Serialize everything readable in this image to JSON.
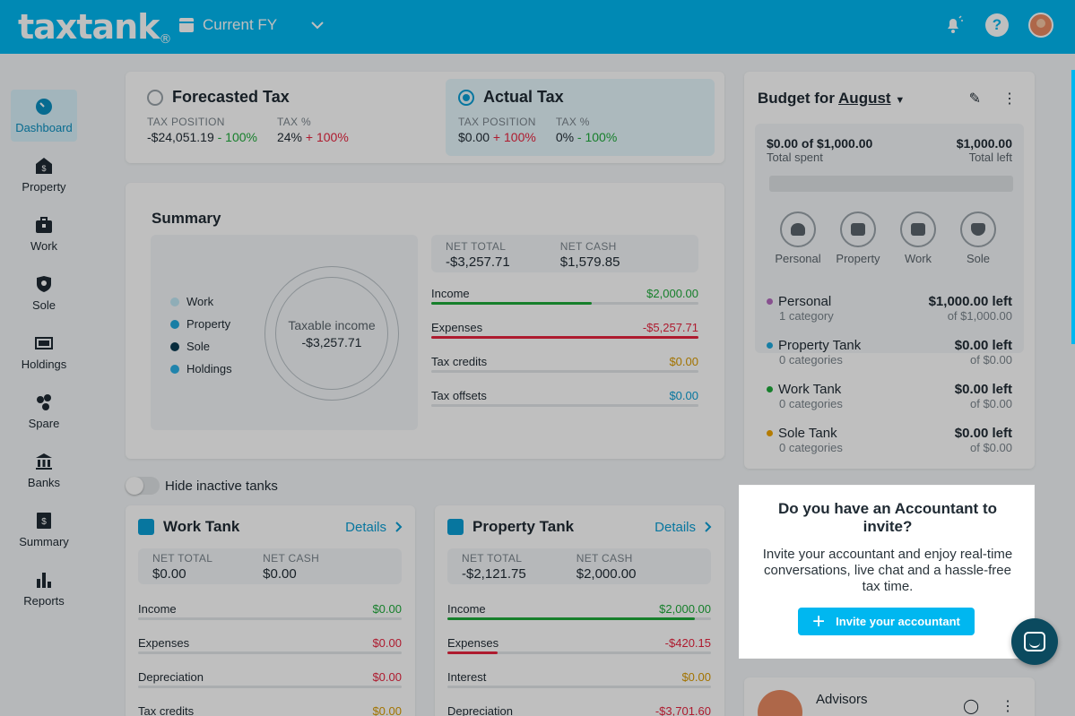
{
  "header": {
    "logo": "taxtank",
    "logo_mark": "®",
    "fy_label": "Current FY"
  },
  "sidebar": {
    "items": [
      {
        "label": "Dashboard",
        "icon": "dashboard-icon"
      },
      {
        "label": "Property",
        "icon": "property-icon"
      },
      {
        "label": "Work",
        "icon": "briefcase-icon"
      },
      {
        "label": "Sole",
        "icon": "shield-icon"
      },
      {
        "label": "Holdings",
        "icon": "holdings-icon"
      },
      {
        "label": "Spare",
        "icon": "spare-icon"
      },
      {
        "label": "Banks",
        "icon": "bank-icon"
      },
      {
        "label": "Summary",
        "icon": "summary-icon"
      },
      {
        "label": "Reports",
        "icon": "reports-icon"
      }
    ]
  },
  "tax": {
    "forecasted": {
      "title": "Forecasted Tax",
      "position_label": "TAX POSITION",
      "position_value": "-$24,051.19",
      "position_change": " - 100%",
      "pct_label": "TAX %",
      "pct_value": "24%",
      "pct_change": " + 100%"
    },
    "actual": {
      "title": "Actual Tax",
      "position_label": "TAX POSITION",
      "position_value": "$0.00",
      "position_change": " + 100%",
      "pct_label": "TAX %",
      "pct_value": "0%",
      "pct_change": " - 100%"
    }
  },
  "summary": {
    "title": "Summary",
    "legend": [
      "Work",
      "Property",
      "Sole",
      "Holdings"
    ],
    "donut_label": "Taxable income",
    "donut_value": "-$3,257.71",
    "net_total_label": "NET TOTAL",
    "net_total": "-$3,257.71",
    "net_cash_label": "NET CASH",
    "net_cash": "$1,579.85",
    "rows": [
      {
        "label": "Income",
        "value": "$2,000.00",
        "fill": 0.6
      },
      {
        "label": "Expenses",
        "value": "-$5,257.71",
        "fill": 1.0
      },
      {
        "label": "Tax credits",
        "value": "$0.00",
        "fill": 0
      },
      {
        "label": "Tax offsets",
        "value": "$0.00",
        "fill": 0
      }
    ]
  },
  "hide_inactive": "Hide inactive tanks",
  "work_tank": {
    "title": "Work Tank",
    "details": "Details",
    "net_total_label": "NET TOTAL",
    "net_total": "$0.00",
    "net_cash_label": "NET CASH",
    "net_cash": "$0.00",
    "rows": [
      {
        "label": "Income",
        "value": "$0.00"
      },
      {
        "label": "Expenses",
        "value": "$0.00"
      },
      {
        "label": "Depreciation",
        "value": "$0.00"
      },
      {
        "label": "Tax credits",
        "value": "$0.00"
      }
    ]
  },
  "property_tank": {
    "title": "Property Tank",
    "details": "Details",
    "net_total_label": "NET TOTAL",
    "net_total": "-$2,121.75",
    "net_cash_label": "NET CASH",
    "net_cash": "$2,000.00",
    "rows": [
      {
        "label": "Income",
        "value": "$2,000.00",
        "fill": 0.94
      },
      {
        "label": "Expenses",
        "value": "-$420.15",
        "fill": 0.19
      },
      {
        "label": "Interest",
        "value": "$0.00",
        "fill": 0
      },
      {
        "label": "Depreciation",
        "value": "-$3,701.60",
        "fill": 0
      }
    ]
  },
  "budget": {
    "title_prefix": "Budget for ",
    "month": "August",
    "spent": "$0.00 of $1,000.00",
    "spent_label": "Total spent",
    "left": "$1,000.00",
    "left_label": "Total left",
    "cats": [
      "Personal",
      "Property",
      "Work",
      "Sole"
    ],
    "list": [
      {
        "name": "Personal",
        "sub": "1 category",
        "value": "$1,000.00 left",
        "of": "of $1,000.00"
      },
      {
        "name": "Property Tank",
        "sub": "0 categories",
        "value": "$0.00 left",
        "of": "of $0.00"
      },
      {
        "name": "Work Tank",
        "sub": "0 categories",
        "value": "$0.00 left",
        "of": "of $0.00"
      },
      {
        "name": "Sole Tank",
        "sub": "0 categories",
        "value": "$0.00 left",
        "of": "of $0.00"
      }
    ]
  },
  "advisors": {
    "title": "Advisors"
  },
  "popup": {
    "title": "Do you have an Accountant to invite?",
    "body": "Invite your accountant and enjoy real-time conversations, live chat and a hassle-free tax time.",
    "button": "Invite your accountant"
  },
  "colors": {
    "brand": "#00b7f0",
    "positive": "#1eaa3a",
    "negative": "#e8243f",
    "credit": "#d99a00",
    "offset": "#0a9ed5",
    "legend_work": "#bfe7f5",
    "legend_property": "#1fa9dc",
    "legend_sole": "#0b3b52",
    "legend_holdings": "#2bb0e6",
    "dot_personal": "#b56bbf",
    "dot_property": "#1fa9dc",
    "dot_work": "#1eaa3a",
    "dot_sole": "#f0a500"
  }
}
